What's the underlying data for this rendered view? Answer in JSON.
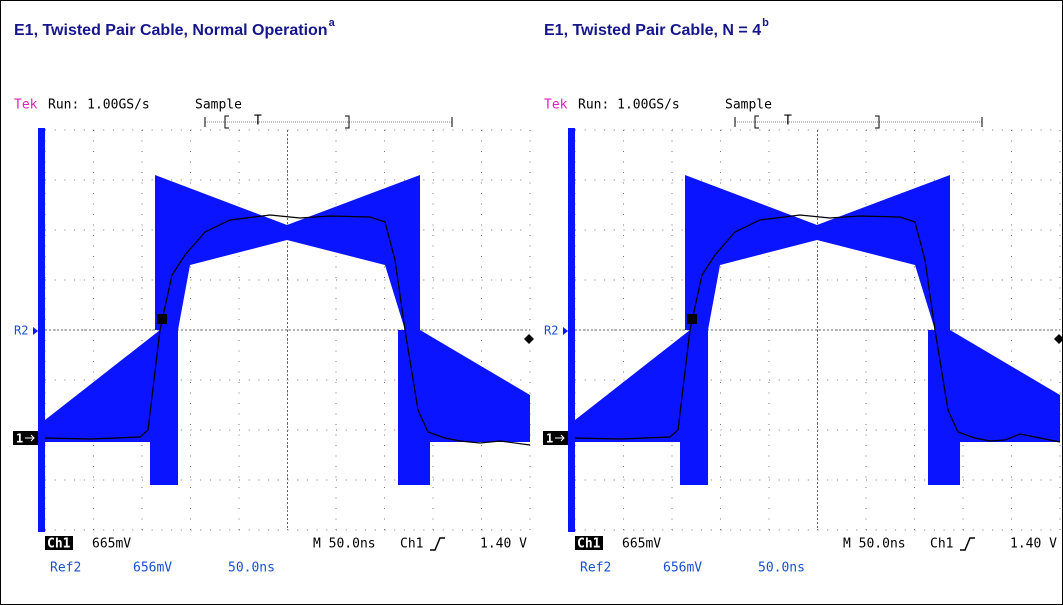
{
  "panels": [
    {
      "title": "E1, Twisted Pair Cable, Normal Operation",
      "title_sup": "a",
      "header": {
        "brand": "Tek",
        "run": "Run: 1.00GS/s",
        "mode": "Sample",
        "trigger_marker": "T"
      },
      "markers": {
        "ref": "R2",
        "channel": "1"
      },
      "footer": {
        "channel": "Ch1",
        "ch_scale": "665mV",
        "timebase": "M 50.0ns",
        "trigger_channel": "Ch1",
        "trigger_level": "1.40 V",
        "ref": "Ref2",
        "ref_scale": "656mV",
        "ref_time": "50.0ns"
      }
    },
    {
      "title": "E1, Twisted Pair Cable, N = 4",
      "title_sup": "b",
      "header": {
        "brand": "Tek",
        "run": "Run: 1.00GS/s",
        "mode": "Sample",
        "trigger_marker": "T"
      },
      "markers": {
        "ref": "R2",
        "channel": "1"
      },
      "footer": {
        "channel": "Ch1",
        "ch_scale": "665mV",
        "timebase": "M 50.0ns",
        "trigger_channel": "Ch1",
        "trigger_level": "1.40 V",
        "ref": "Ref2",
        "ref_scale": "656mV",
        "ref_time": "50.0ns"
      }
    }
  ]
}
